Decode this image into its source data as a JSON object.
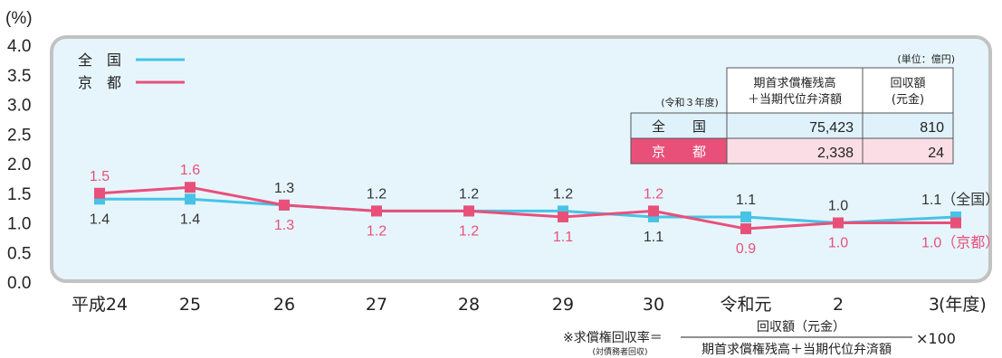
{
  "chart_data": {
    "type": "line",
    "unit_label": "(%)",
    "categories": [
      "平成24",
      "25",
      "26",
      "27",
      "28",
      "29",
      "30",
      "令和元",
      "2",
      "3"
    ],
    "x_suffix": "(年度)",
    "ylim": [
      0,
      4.0
    ],
    "yticks": [
      "0.0",
      "0.5",
      "1.0",
      "1.5",
      "2.0",
      "2.5",
      "3.0",
      "3.5",
      "4.0"
    ],
    "series": [
      {
        "name": "全　国",
        "color": "#46c3e6",
        "values": [
          1.4,
          1.4,
          1.3,
          1.2,
          1.2,
          1.2,
          1.1,
          1.1,
          1.0,
          1.1
        ],
        "labels": [
          "1.4",
          "1.4",
          "1.3",
          "1.2",
          "1.2",
          "1.2",
          "1.1",
          "1.1",
          "1.0",
          "1.1（全国）"
        ]
      },
      {
        "name": "京　都",
        "color": "#e8507a",
        "values": [
          1.5,
          1.6,
          1.3,
          1.2,
          1.2,
          1.1,
          1.2,
          0.9,
          1.0,
          1.0
        ],
        "labels": [
          "1.5",
          "1.6",
          "1.3",
          "1.2",
          "1.2",
          "1.1",
          "1.2",
          "0.9",
          "1.0",
          "1.0（京都）"
        ]
      }
    ],
    "legend_position": "top-left",
    "grid": false
  },
  "table": {
    "unit": "(単位：億円)",
    "year_note": "(令和３年度)",
    "header_col1_line1": "期首求償権残高",
    "header_col1_line2": "＋当期代位弁済額",
    "header_col2_line1": "回収額",
    "header_col2_line2": "(元金)",
    "rows": [
      {
        "label": "全　　国",
        "col1": "75,423",
        "col2": "810"
      },
      {
        "label": "京　　都",
        "col1": "2,338",
        "col2": "24"
      }
    ]
  },
  "formula": {
    "prefix": "※求償権回収率＝",
    "sub": "(対債務者回収)",
    "numerator": "回収額（元金）",
    "denominator": "期首求償権残高＋当期代位弁済額",
    "suffix": "×100"
  },
  "colors": {
    "plot_bg": "#e6f5fc",
    "plot_border": "#c2c2c2",
    "zenkoku": "#46c3e6",
    "kyoto": "#e8507a",
    "table_zen_bg": "#dff2fb",
    "table_kyo_bg": "#fbdde5"
  }
}
